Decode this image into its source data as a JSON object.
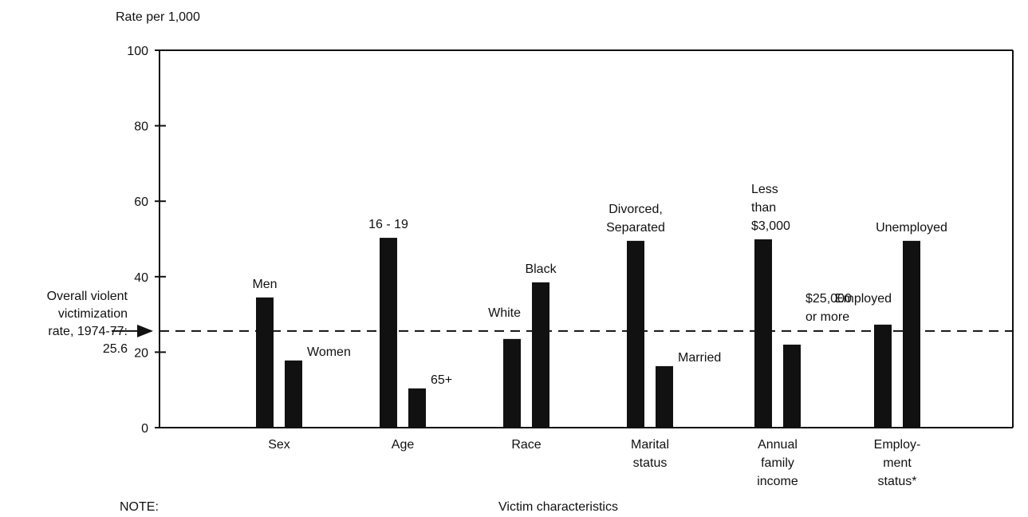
{
  "chart_data": {
    "type": "bar",
    "y_label": "Rate per 1,000",
    "x_label": "Victim characteristics",
    "note": "NOTE:",
    "ylim": [
      0,
      100
    ],
    "yticks": [
      0,
      20,
      40,
      60,
      80,
      100
    ],
    "color": "#111111",
    "reference": {
      "value": 25.6,
      "label": [
        "Overall violent",
        "victimization",
        "rate, 1974-77:"
      ]
    },
    "groups": [
      {
        "name": [
          "Sex"
        ],
        "bars": [
          {
            "label": [
              "Men"
            ],
            "value": 34.5
          },
          {
            "label": [
              "Women"
            ],
            "value": 17.8
          }
        ]
      },
      {
        "name": [
          "Age"
        ],
        "bars": [
          {
            "label": [
              "16 - 19"
            ],
            "value": 50.3
          },
          {
            "label": [
              "65+"
            ],
            "value": 10.4
          }
        ]
      },
      {
        "name": [
          "Race"
        ],
        "bars": [
          {
            "label": [
              "White"
            ],
            "value": 23.5
          },
          {
            "label": [
              "Black"
            ],
            "value": 38.5
          }
        ]
      },
      {
        "name": [
          "Marital",
          "status"
        ],
        "bars": [
          {
            "label": [
              "Divorced,",
              "Separated"
            ],
            "value": 49.5
          },
          {
            "label": [
              "Married"
            ],
            "value": 16.3
          }
        ]
      },
      {
        "name": [
          "Annual",
          "family",
          "income"
        ],
        "bars": [
          {
            "label": [
              "Less",
              "than",
              "$3,000"
            ],
            "value": 49.9
          },
          {
            "label": [
              "$25,000",
              "or more"
            ],
            "value": 22
          }
        ]
      },
      {
        "name": [
          "Employ-",
          "ment",
          "status*"
        ],
        "bars": [
          {
            "label": [
              "Employed"
            ],
            "value": 27.3
          },
          {
            "label": [
              "Unemployed"
            ],
            "value": 49.5
          }
        ]
      }
    ]
  }
}
